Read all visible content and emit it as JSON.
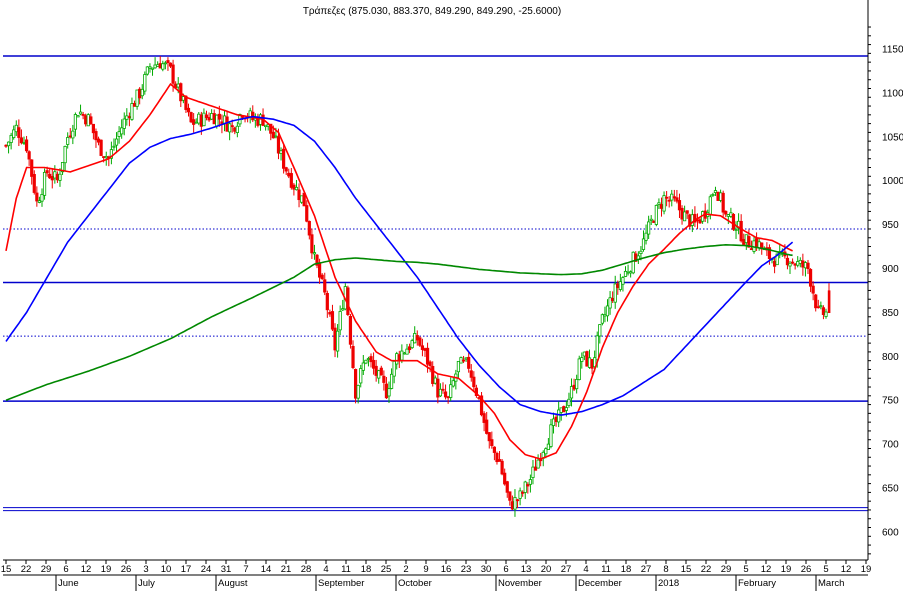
{
  "chart_data": {
    "type": "candlestick",
    "title": "Τράπεζες (875.030, 883.370, 849.290, 849.290, -25.6000)",
    "ylim": [
      568,
      1183
    ],
    "yticks": [
      600,
      650,
      700,
      750,
      800,
      850,
      900,
      950,
      1000,
      1050,
      1100,
      1150
    ],
    "day_ticks": [
      "15",
      "22",
      "29",
      "6",
      "12",
      "19",
      "26",
      "3",
      "10",
      "17",
      "24",
      "31",
      "7",
      "14",
      "21",
      "28",
      "4",
      "11",
      "18",
      "25",
      "2",
      "9",
      "16",
      "23",
      "30",
      "6",
      "13",
      "20",
      "27",
      "4",
      "11",
      "18",
      "27",
      "8",
      "15",
      "22",
      "29",
      "5",
      "12",
      "19",
      "26",
      "5",
      "12",
      "19"
    ],
    "months": [
      "June",
      "July",
      "August",
      "September",
      "October",
      "November",
      "December",
      "2018",
      "February",
      "March"
    ],
    "horizontal_lines": [
      {
        "value": 1142,
        "style": "solid",
        "color": "#0000cc"
      },
      {
        "value": 945,
        "style": "dotted",
        "color": "#0000cc"
      },
      {
        "value": 884,
        "style": "solid",
        "color": "#0000cc"
      },
      {
        "value": 823,
        "style": "dotted",
        "color": "#0000cc"
      },
      {
        "value": 749,
        "style": "solid",
        "color": "#0000cc"
      },
      {
        "value": 626,
        "style": "double",
        "color": "#0000cc"
      }
    ],
    "series_close_keypoints": [
      [
        0,
        1040
      ],
      [
        4,
        1060
      ],
      [
        8,
        1040
      ],
      [
        12,
        975
      ],
      [
        16,
        1010
      ],
      [
        20,
        1000
      ],
      [
        24,
        1050
      ],
      [
        28,
        1080
      ],
      [
        32,
        1070
      ],
      [
        36,
        1040
      ],
      [
        40,
        1025
      ],
      [
        44,
        1055
      ],
      [
        48,
        1080
      ],
      [
        52,
        1100
      ],
      [
        56,
        1130
      ],
      [
        60,
        1135
      ],
      [
        64,
        1125
      ],
      [
        68,
        1095
      ],
      [
        72,
        1065
      ],
      [
        76,
        1070
      ],
      [
        80,
        1075
      ],
      [
        84,
        1070
      ],
      [
        88,
        1060
      ],
      [
        92,
        1080
      ],
      [
        96,
        1070
      ],
      [
        100,
        1070
      ],
      [
        104,
        1050
      ],
      [
        108,
        1020
      ],
      [
        112,
        995
      ],
      [
        116,
        975
      ],
      [
        120,
        910
      ],
      [
        124,
        870
      ],
      [
        128,
        810
      ],
      [
        132,
        880
      ],
      [
        136,
        760
      ],
      [
        140,
        800
      ],
      [
        144,
        780
      ],
      [
        148,
        760
      ],
      [
        152,
        800
      ],
      [
        156,
        810
      ],
      [
        160,
        820
      ],
      [
        164,
        795
      ],
      [
        168,
        760
      ],
      [
        172,
        750
      ],
      [
        176,
        790
      ],
      [
        180,
        790
      ],
      [
        184,
        750
      ],
      [
        188,
        700
      ],
      [
        192,
        680
      ],
      [
        196,
        630
      ],
      [
        200,
        640
      ],
      [
        204,
        660
      ],
      [
        208,
        690
      ],
      [
        212,
        715
      ],
      [
        216,
        735
      ],
      [
        220,
        760
      ],
      [
        224,
        800
      ],
      [
        228,
        790
      ],
      [
        232,
        840
      ],
      [
        236,
        870
      ],
      [
        240,
        890
      ],
      [
        244,
        910
      ],
      [
        248,
        930
      ],
      [
        252,
        960
      ],
      [
        256,
        980
      ],
      [
        260,
        975
      ],
      [
        264,
        960
      ],
      [
        268,
        950
      ],
      [
        272,
        965
      ],
      [
        276,
        995
      ],
      [
        280,
        960
      ],
      [
        284,
        950
      ],
      [
        288,
        930
      ],
      [
        292,
        930
      ],
      [
        296,
        915
      ],
      [
        300,
        910
      ],
      [
        304,
        912
      ],
      [
        308,
        905
      ],
      [
        312,
        900
      ],
      [
        316,
        849
      ]
    ],
    "moving_averages": [
      {
        "color": "#ff0000",
        "keypoints": [
          [
            0,
            920
          ],
          [
            4,
            980
          ],
          [
            8,
            1015
          ],
          [
            15,
            1015
          ],
          [
            25,
            1010
          ],
          [
            40,
            1025
          ],
          [
            48,
            1045
          ],
          [
            56,
            1075
          ],
          [
            64,
            1110
          ],
          [
            70,
            1095
          ],
          [
            80,
            1085
          ],
          [
            90,
            1075
          ],
          [
            100,
            1070
          ],
          [
            106,
            1055
          ],
          [
            112,
            1015
          ],
          [
            120,
            960
          ],
          [
            128,
            890
          ],
          [
            136,
            840
          ],
          [
            144,
            805
          ],
          [
            150,
            795
          ],
          [
            160,
            795
          ],
          [
            168,
            780
          ],
          [
            176,
            775
          ],
          [
            184,
            755
          ],
          [
            190,
            735
          ],
          [
            196,
            705
          ],
          [
            202,
            688
          ],
          [
            208,
            683
          ],
          [
            214,
            690
          ],
          [
            220,
            720
          ],
          [
            226,
            760
          ],
          [
            232,
            810
          ],
          [
            238,
            850
          ],
          [
            244,
            880
          ],
          [
            250,
            905
          ],
          [
            256,
            922
          ],
          [
            262,
            940
          ],
          [
            268,
            955
          ],
          [
            272,
            962
          ],
          [
            278,
            960
          ],
          [
            286,
            945
          ],
          [
            292,
            935
          ],
          [
            298,
            932
          ],
          [
            306,
            920
          ]
        ]
      },
      {
        "color": "#0000ff",
        "keypoints": [
          [
            0,
            817
          ],
          [
            8,
            850
          ],
          [
            16,
            890
          ],
          [
            24,
            930
          ],
          [
            32,
            960
          ],
          [
            40,
            990
          ],
          [
            48,
            1020
          ],
          [
            56,
            1038
          ],
          [
            64,
            1048
          ],
          [
            72,
            1053
          ],
          [
            80,
            1060
          ],
          [
            88,
            1068
          ],
          [
            96,
            1073
          ],
          [
            104,
            1070
          ],
          [
            112,
            1063
          ],
          [
            120,
            1045
          ],
          [
            128,
            1015
          ],
          [
            136,
            980
          ],
          [
            144,
            950
          ],
          [
            152,
            920
          ],
          [
            160,
            890
          ],
          [
            168,
            855
          ],
          [
            176,
            820
          ],
          [
            184,
            790
          ],
          [
            192,
            765
          ],
          [
            200,
            745
          ],
          [
            208,
            737
          ],
          [
            216,
            733
          ],
          [
            224,
            737
          ],
          [
            232,
            745
          ],
          [
            240,
            755
          ],
          [
            248,
            770
          ],
          [
            256,
            785
          ],
          [
            264,
            810
          ],
          [
            272,
            835
          ],
          [
            280,
            860
          ],
          [
            288,
            885
          ],
          [
            294,
            903
          ],
          [
            300,
            915
          ],
          [
            306,
            930
          ]
        ]
      },
      {
        "color": "#008800",
        "keypoints": [
          [
            0,
            750
          ],
          [
            16,
            768
          ],
          [
            32,
            783
          ],
          [
            48,
            800
          ],
          [
            64,
            820
          ],
          [
            80,
            845
          ],
          [
            96,
            867
          ],
          [
            112,
            890
          ],
          [
            120,
            905
          ],
          [
            128,
            910
          ],
          [
            136,
            912
          ],
          [
            144,
            910
          ],
          [
            152,
            908
          ],
          [
            160,
            907
          ],
          [
            168,
            905
          ],
          [
            176,
            902
          ],
          [
            184,
            899
          ],
          [
            192,
            897
          ],
          [
            200,
            895
          ],
          [
            208,
            894
          ],
          [
            216,
            893
          ],
          [
            224,
            894
          ],
          [
            232,
            898
          ],
          [
            240,
            905
          ],
          [
            248,
            912
          ],
          [
            256,
            918
          ],
          [
            264,
            922
          ],
          [
            272,
            925
          ],
          [
            280,
            927
          ],
          [
            288,
            926
          ],
          [
            296,
            922
          ],
          [
            304,
            916
          ],
          [
            306,
            915
          ]
        ]
      }
    ]
  }
}
